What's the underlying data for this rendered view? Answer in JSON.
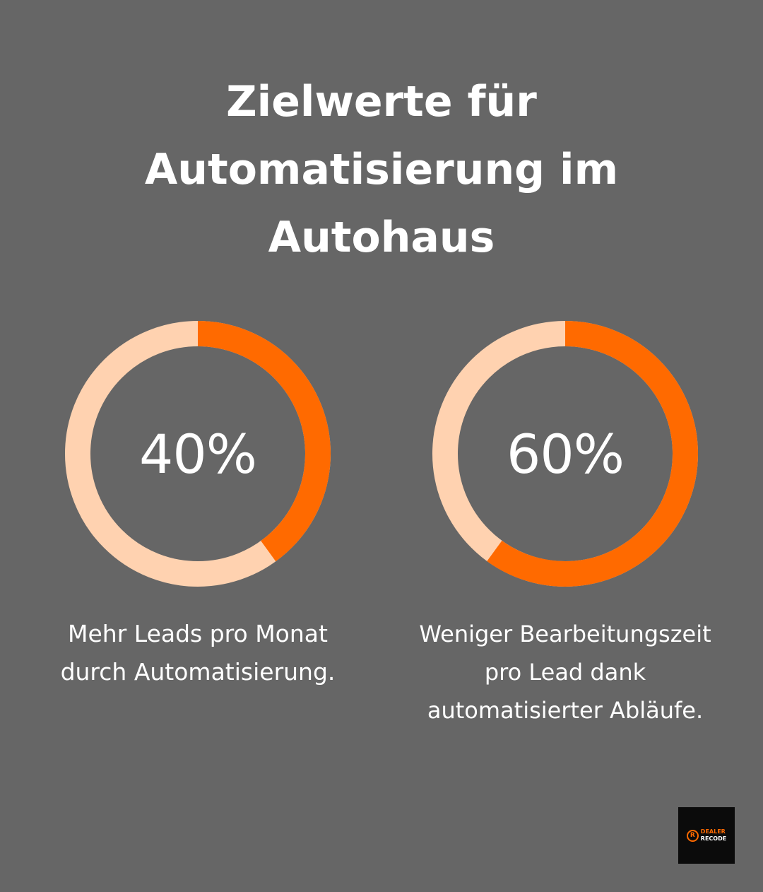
{
  "title": {
    "lines": [
      "Zielwerte für",
      "Automatisierung im",
      "Autohaus"
    ]
  },
  "colors": {
    "background": "#666666",
    "accent": "#ff6a00",
    "track": "#ffd2b0",
    "text": "#ffffff"
  },
  "chart_data": [
    {
      "type": "pie",
      "title": "Zielwerte für Automatisierung im Autohaus",
      "value": 40,
      "max": 100,
      "label": "40%",
      "caption_lines": [
        "Mehr Leads pro Monat",
        "durch Automatisierung."
      ]
    },
    {
      "type": "pie",
      "title": "Zielwerte für Automatisierung im Autohaus",
      "value": 60,
      "max": 100,
      "label": "60%",
      "caption_lines": [
        "Weniger Bearbeitungszeit",
        "pro Lead dank",
        "automatisierter Abläufe."
      ]
    }
  ],
  "logo": {
    "mark": "R",
    "line1": "DEALER",
    "line2": "RECODE"
  }
}
